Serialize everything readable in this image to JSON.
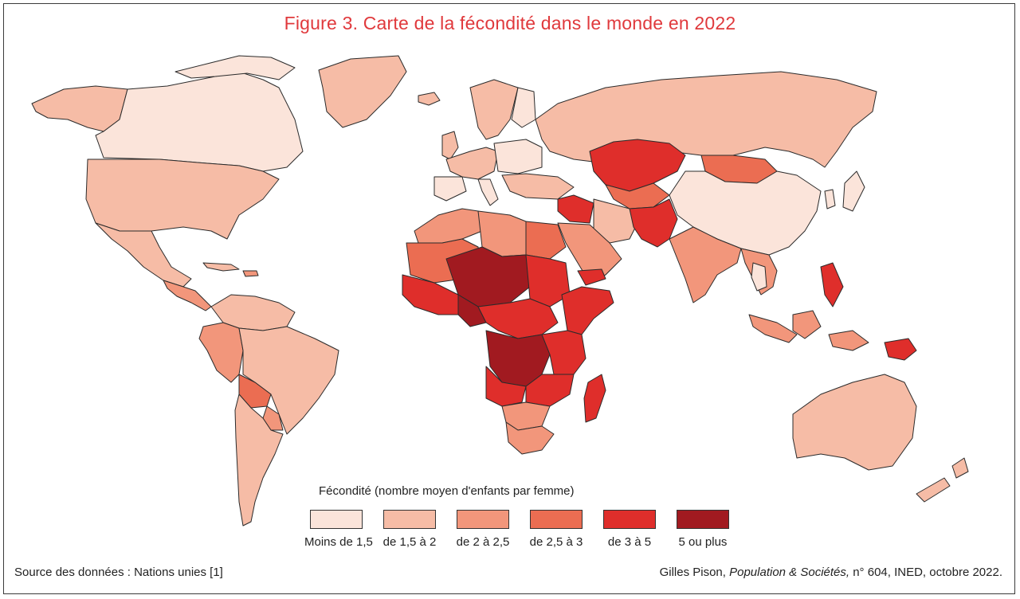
{
  "title": "Figure 3. Carte de la fécondité dans le monde en 2022",
  "legend": {
    "title": "Fécondité (nombre moyen d'enfants par femme)",
    "classes": [
      {
        "label": "Moins de 1,5",
        "color": "#fbe4da"
      },
      {
        "label": "de 1,5 à 2",
        "color": "#f6bca6"
      },
      {
        "label": "de 2 à 2,5",
        "color": "#f2967b"
      },
      {
        "label": "de 2,5 à 3",
        "color": "#eb6d52"
      },
      {
        "label": "de 3 à 5",
        "color": "#df2e2b"
      },
      {
        "label": "5 ou plus",
        "color": "#a11a20"
      }
    ]
  },
  "source": {
    "left": "Source des données : Nations unies [1]",
    "author": "Gilles Pison,",
    "journal": "Population & Sociétés,",
    "details": "n° 604, INED, octobre 2022."
  },
  "colors": {
    "title": "#e0393c",
    "border": "#2b2b2b",
    "sea": "#ffffff"
  }
}
